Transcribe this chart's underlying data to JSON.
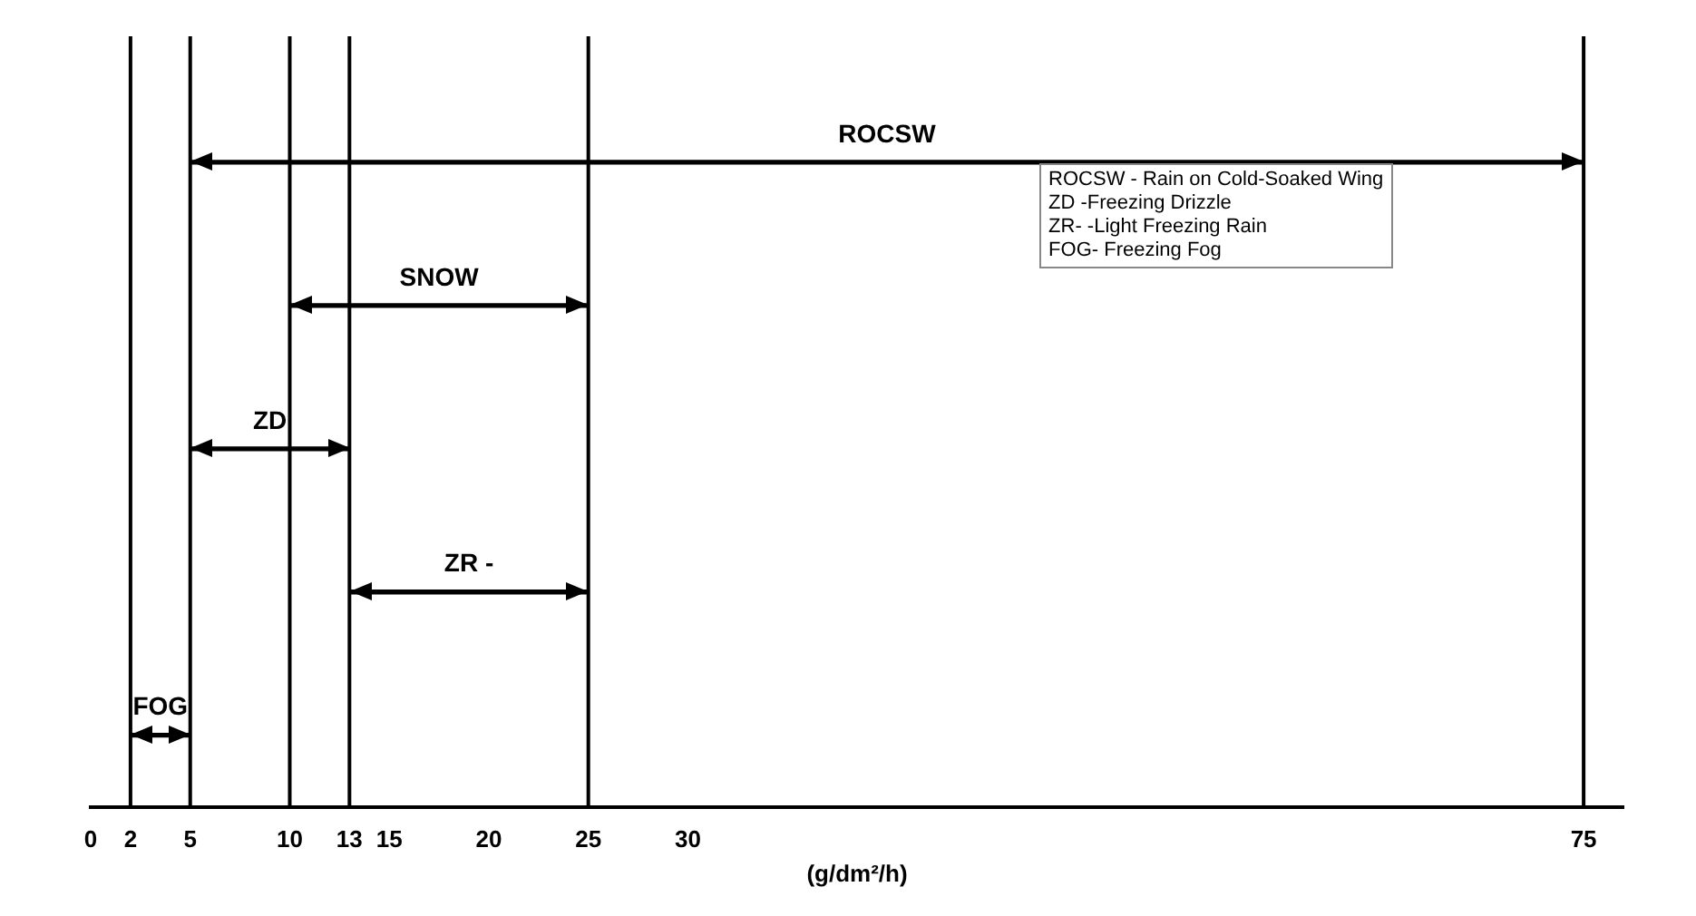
{
  "chart_data": {
    "type": "bar",
    "orientation": "horizontal",
    "categories": [
      "ROCSW",
      "SNOW",
      "ZD",
      "ZR -",
      "FOG"
    ],
    "base": [
      5,
      10,
      5,
      13,
      2
    ],
    "values": [
      70,
      15,
      8,
      12,
      3
    ],
    "color": "#000000",
    "xlim": [
      0,
      77
    ],
    "xticks": [
      0,
      2,
      5,
      10,
      13,
      15,
      20,
      25,
      30,
      75
    ],
    "xlabel": "(g/dm²/h)",
    "ref_lines": [
      {
        "axis": "x",
        "value": 2,
        "color": "#000000"
      },
      {
        "axis": "x",
        "value": 5,
        "color": "#000000"
      },
      {
        "axis": "x",
        "value": 10,
        "color": "#000000"
      },
      {
        "axis": "x",
        "value": 13,
        "color": "#000000"
      },
      {
        "axis": "x",
        "value": 25,
        "color": "#000000"
      },
      {
        "axis": "x",
        "value": 75,
        "color": "#000000"
      }
    ],
    "annotations": [
      "ROCSW - Rain on Cold-Soaked Wing",
      "ZD -Freezing Drizzle",
      "ZR- -Light Freezing Rain",
      "FOG- Freezing Fog"
    ],
    "tick_labels": "x",
    "grid": false,
    "legend": false
  }
}
